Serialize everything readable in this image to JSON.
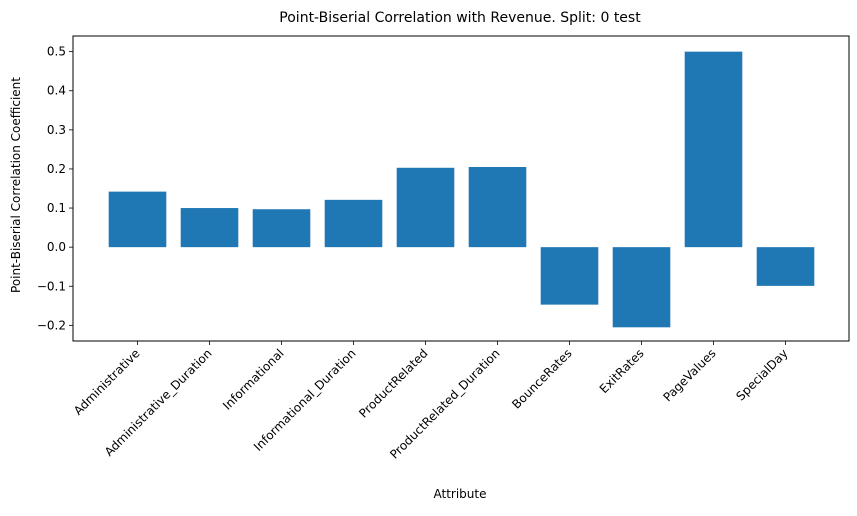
{
  "chart_data": {
    "type": "bar",
    "title": "Point-Biserial Correlation with Revenue. Split: 0 test",
    "xlabel": "Attribute",
    "ylabel": "Point-Biserial Correlation Coefficient",
    "categories": [
      "Administrative",
      "Administrative_Duration",
      "Informational",
      "Informational_Duration",
      "ProductRelated",
      "ProductRelated_Duration",
      "BounceRates",
      "ExitRates",
      "PageValues",
      "SpecialDay"
    ],
    "values": [
      0.142,
      0.1,
      0.097,
      0.121,
      0.203,
      0.205,
      -0.147,
      -0.205,
      0.5,
      -0.099
    ],
    "ylim": [
      -0.24,
      0.54
    ],
    "yticks": [
      -0.2,
      -0.1,
      0.0,
      0.1,
      0.2,
      0.3,
      0.4,
      0.5
    ],
    "ytick_labels": [
      "−0.2",
      "−0.1",
      "0.0",
      "0.1",
      "0.2",
      "0.3",
      "0.4",
      "0.5"
    ],
    "bar_color": "#1f77b4",
    "grid": false,
    "legend": "none"
  }
}
